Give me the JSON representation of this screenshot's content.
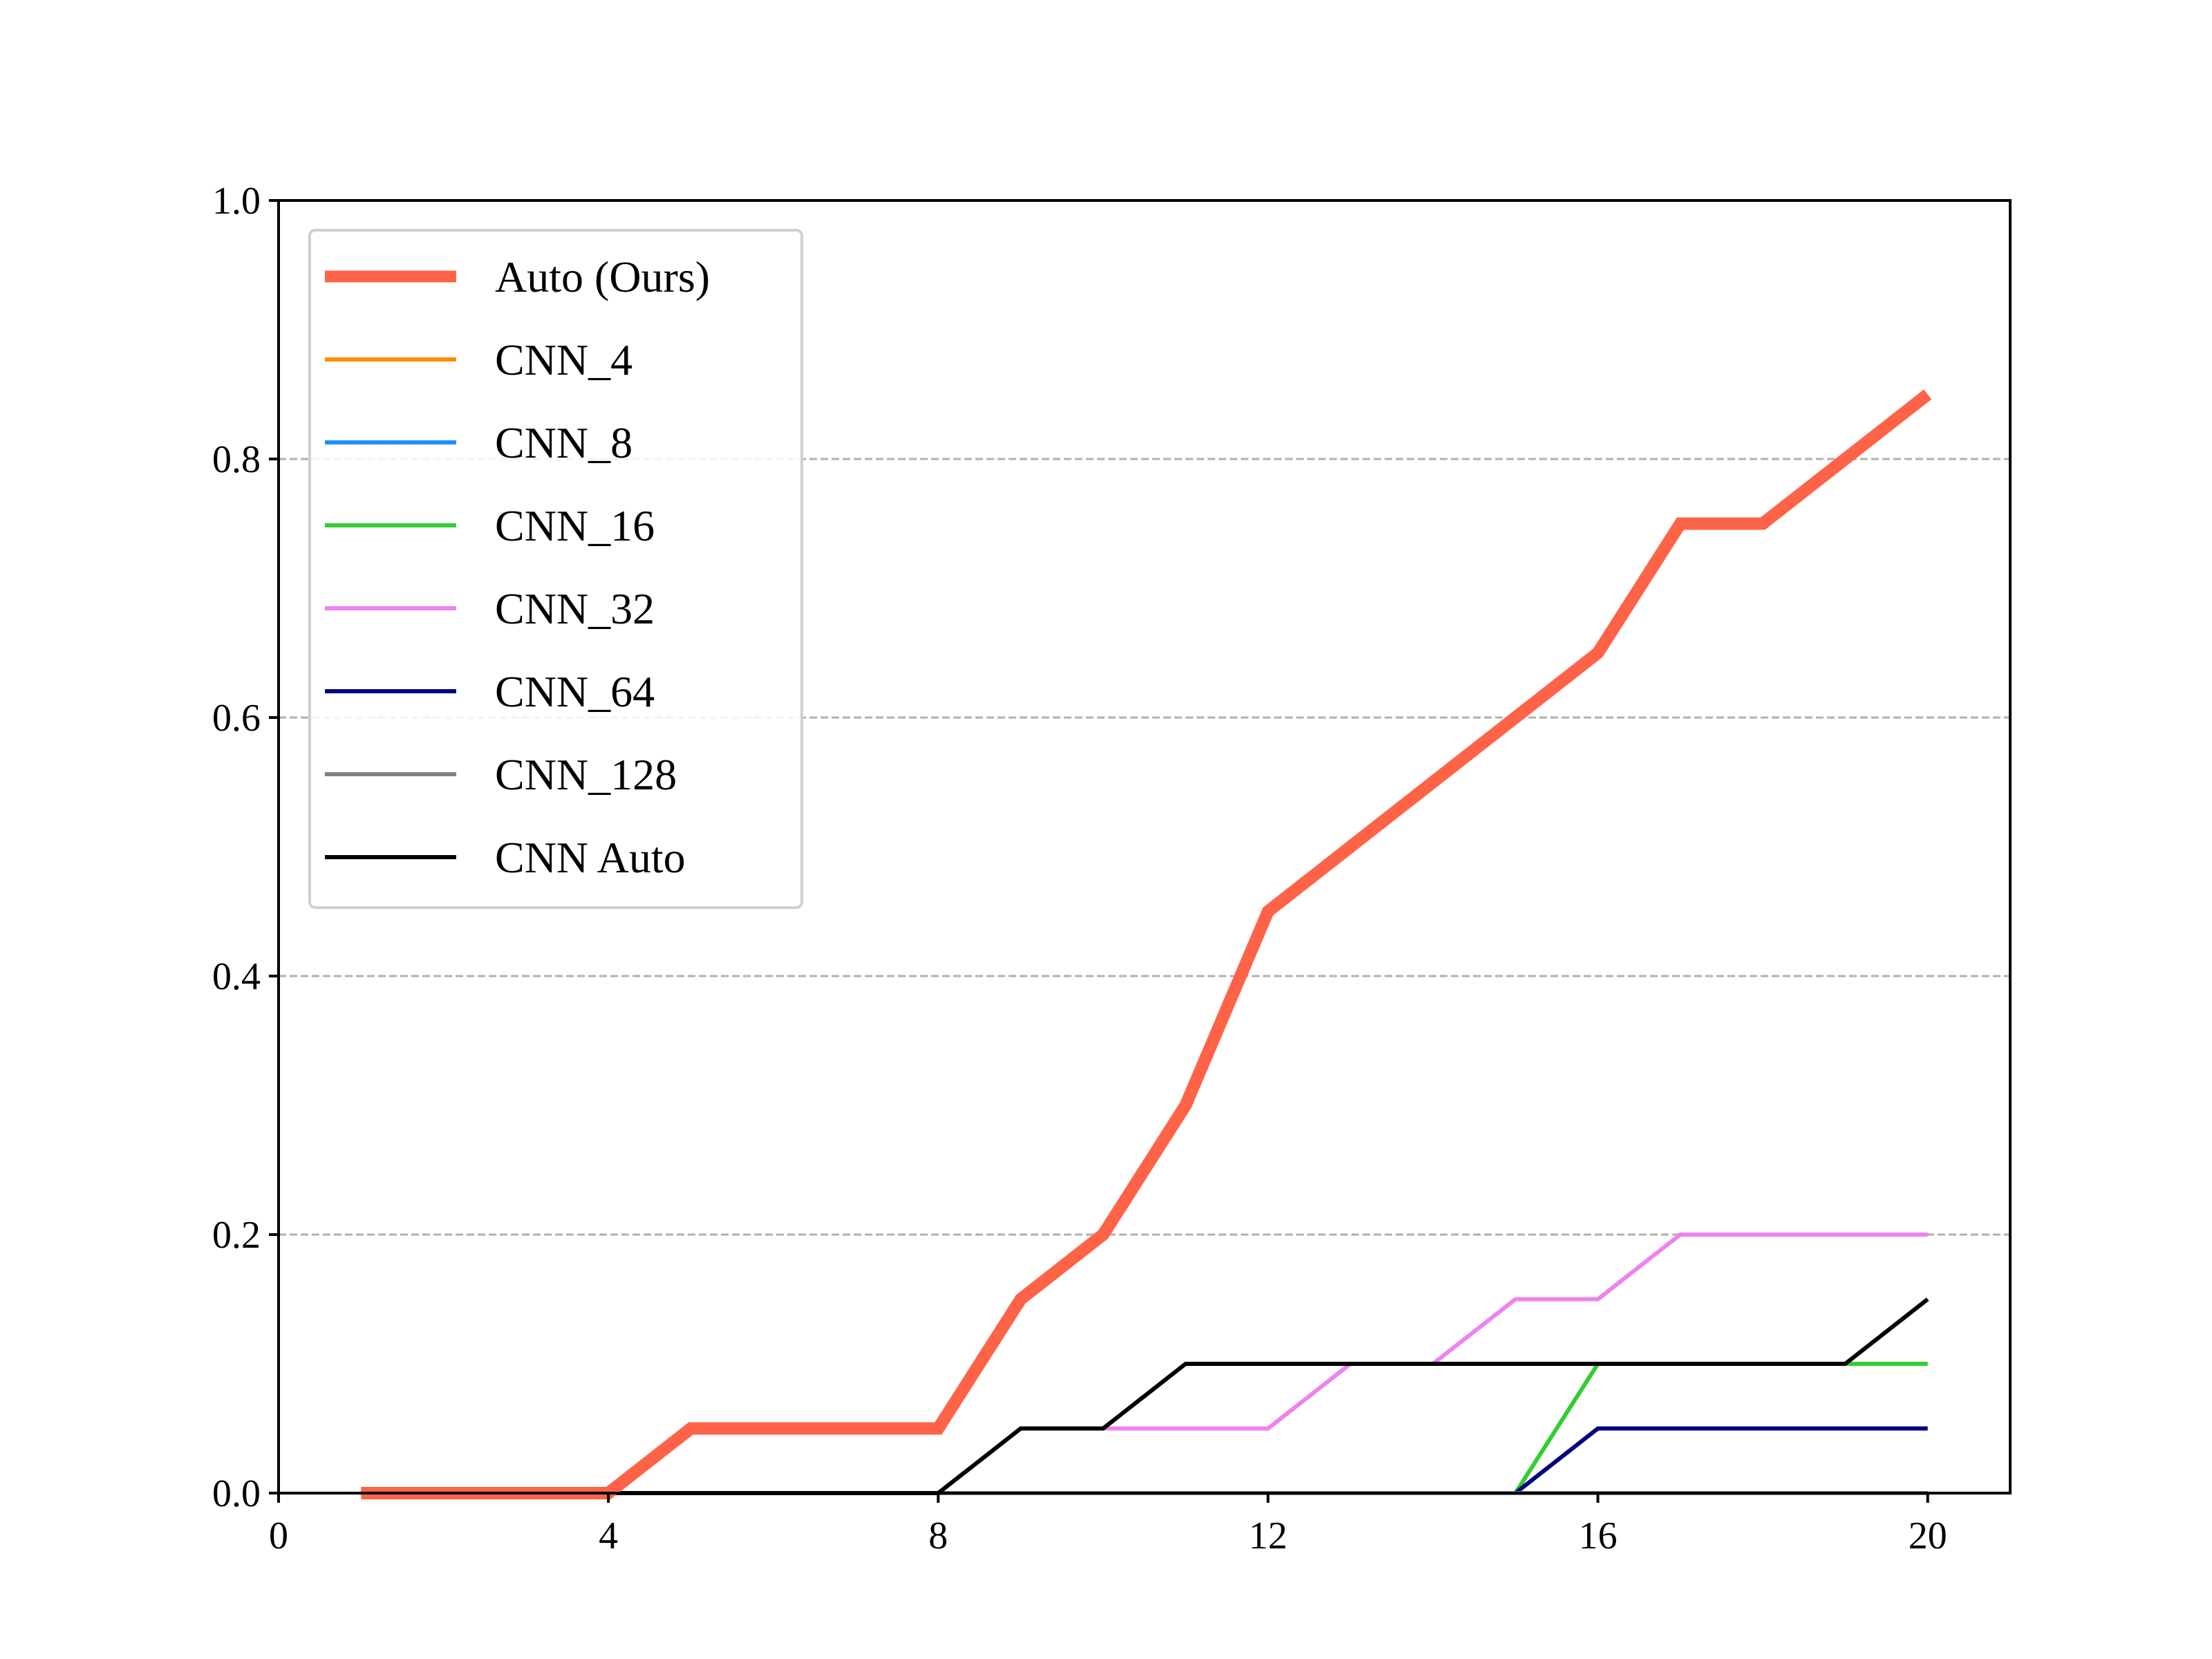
{
  "chart_data": {
    "type": "line",
    "title": "",
    "xlabel": "",
    "ylabel": "",
    "xlim": [
      0,
      21
    ],
    "ylim": [
      0,
      1.0
    ],
    "x_ticks": [
      0,
      4,
      8,
      12,
      16,
      20
    ],
    "y_ticks": [
      0.0,
      0.2,
      0.4,
      0.6,
      0.8,
      1.0
    ],
    "x_tick_labels": [
      "0",
      "4",
      "8",
      "12",
      "16",
      "20"
    ],
    "y_tick_labels": [
      "0.0",
      "0.2",
      "0.4",
      "0.6",
      "0.8",
      "1.0"
    ],
    "grid": "horizontal dashed",
    "legend_position": "upper-left",
    "x": [
      1,
      2,
      3,
      4,
      5,
      6,
      7,
      8,
      9,
      10,
      11,
      12,
      13,
      14,
      15,
      16,
      17,
      18,
      19,
      20
    ],
    "series": [
      {
        "name": "Auto (Ours)",
        "color": "#ff6347",
        "width": 18,
        "values": [
          0,
          0,
          0,
          0,
          0.05,
          0.05,
          0.05,
          0.05,
          0.15,
          0.2,
          0.3,
          0.45,
          0.5,
          0.55,
          0.6,
          0.65,
          0.75,
          0.75,
          0.8,
          0.85
        ]
      },
      {
        "name": "CNN_4",
        "color": "#ff8c00",
        "width": 6,
        "values": [
          0,
          0,
          0,
          0,
          0,
          0,
          0,
          0,
          0,
          0,
          0,
          0,
          0,
          0,
          0,
          0,
          0,
          0,
          0,
          0
        ]
      },
      {
        "name": "CNN_8",
        "color": "#1e90ff",
        "width": 6,
        "values": [
          0,
          0,
          0,
          0,
          0,
          0,
          0,
          0,
          0,
          0,
          0,
          0,
          0,
          0,
          0,
          0,
          0,
          0,
          0,
          0
        ]
      },
      {
        "name": "CNN_16",
        "color": "#32cd32",
        "width": 6,
        "values": [
          0,
          0,
          0,
          0,
          0,
          0,
          0,
          0,
          0,
          0,
          0,
          0,
          0,
          0,
          0,
          0.1,
          0.1,
          0.1,
          0.1,
          0.1
        ]
      },
      {
        "name": "CNN_32",
        "color": "#ee82ee",
        "width": 6,
        "values": [
          0,
          0,
          0,
          0,
          0,
          0,
          0,
          0,
          0.05,
          0.05,
          0.05,
          0.05,
          0.1,
          0.1,
          0.15,
          0.15,
          0.2,
          0.2,
          0.2,
          0.2
        ]
      },
      {
        "name": "CNN_64",
        "color": "#000080",
        "width": 6,
        "values": [
          0,
          0,
          0,
          0,
          0,
          0,
          0,
          0,
          0,
          0,
          0,
          0,
          0,
          0,
          0,
          0.05,
          0.05,
          0.05,
          0.05,
          0.05
        ]
      },
      {
        "name": "CNN_128",
        "color": "#808080",
        "width": 6,
        "values": [
          0,
          0,
          0,
          0,
          0,
          0,
          0,
          0,
          0,
          0,
          0,
          0,
          0,
          0,
          0,
          0,
          0,
          0,
          0,
          0
        ]
      },
      {
        "name": "CNN Auto",
        "color": "#000000",
        "width": 6,
        "values": [
          0,
          0,
          0,
          0,
          0,
          0,
          0,
          0,
          0.05,
          0.05,
          0.1,
          0.1,
          0.1,
          0.1,
          0.1,
          0.1,
          0.1,
          0.1,
          0.1,
          0.15
        ]
      }
    ]
  }
}
